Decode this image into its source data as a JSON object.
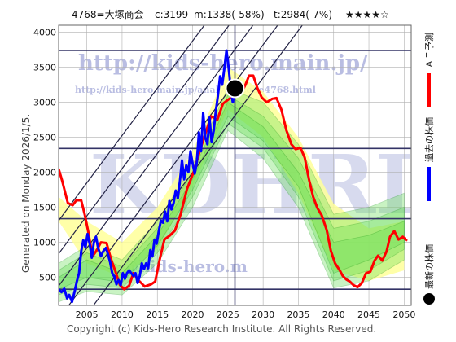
{
  "header": {
    "code_name": "4768=大塚商会",
    "current": "c:3199",
    "max": "m:1338(-58%)",
    "target": "t:2984(-7%)",
    "stars": "★★★★☆"
  },
  "side_label": "Generated on Monday 2026/1/5.",
  "footer": "Copyright (c) Kids-Hero Research Institute. All Rights Reserved.",
  "watermarks": {
    "url_main": "http://kids-hero.main.jp/",
    "url_sub": "http://kids-hero.main.jp/analysis/code4768.html",
    "logo": "KDHRI",
    "email": "@kids-hero.m"
  },
  "legend": [
    {
      "label": "ＡＩ予測",
      "color": "#ff0000",
      "kind": "line"
    },
    {
      "label": "過去の株価",
      "color": "#0000ff",
      "kind": "line"
    },
    {
      "label": "最新の株価",
      "color": "#000000",
      "kind": "dot"
    }
  ],
  "colors": {
    "band_fill": "#66dd55",
    "band_line": "#119911",
    "yellow_band": "#ffff99",
    "channel_line": "#222244",
    "hline": "#333366",
    "grid": "#b0b0b0",
    "plot_bg": "#ffffff"
  },
  "chart_data": {
    "type": "line",
    "x_ticks": [
      2005,
      2010,
      2015,
      2020,
      2025,
      2030,
      2035,
      2040,
      2045,
      2050
    ],
    "y_ticks": [
      500,
      1000,
      1500,
      2000,
      2500,
      3000,
      3500,
      4000
    ],
    "xlim": [
      2001,
      2051
    ],
    "ylim": [
      100,
      4100
    ],
    "grid": true,
    "current_point": {
      "x": 2026.0,
      "y": 3199
    },
    "current_vline_x": 2026.0,
    "horizontal_lines": [
      3740,
      2340,
      1338,
      330
    ],
    "channel_lines": [
      {
        "x1": 1998.2,
        "y1": 0,
        "x2": 2029.3,
        "y2": 4200
      },
      {
        "x1": 2001.7,
        "y1": 0,
        "x2": 2032.8,
        "y2": 4200
      },
      {
        "x1": 2005.2,
        "y1": 0,
        "x2": 2036.3,
        "y2": 4200
      },
      {
        "x1": 1994.8,
        "y1": 0,
        "x2": 2025.9,
        "y2": 4200
      },
      {
        "x1": 1991.3,
        "y1": 0,
        "x2": 2022.4,
        "y2": 4200
      }
    ],
    "series": [
      {
        "name": "ＡＩ予測",
        "color": "#ff0000",
        "points": [
          [
            2001,
            2050
          ],
          [
            2001.5,
            1880
          ],
          [
            2002.3,
            1560
          ],
          [
            2003,
            1530
          ],
          [
            2003.5,
            1600
          ],
          [
            2004.2,
            1600
          ],
          [
            2004.7,
            1400
          ],
          [
            2005.2,
            1150
          ],
          [
            2005.8,
            800
          ],
          [
            2006.3,
            870
          ],
          [
            2007,
            1000
          ],
          [
            2007.8,
            990
          ],
          [
            2008.4,
            770
          ],
          [
            2009,
            600
          ],
          [
            2009.7,
            390
          ],
          [
            2010.3,
            330
          ],
          [
            2011,
            380
          ],
          [
            2011.6,
            560
          ],
          [
            2012.3,
            460
          ],
          [
            2013.2,
            370
          ],
          [
            2014.1,
            400
          ],
          [
            2014.7,
            440
          ],
          [
            2015.3,
            740
          ],
          [
            2016,
            1040
          ],
          [
            2016.8,
            1100
          ],
          [
            2017.5,
            1170
          ],
          [
            2018.3,
            1400
          ],
          [
            2019.2,
            1760
          ],
          [
            2020.2,
            2020
          ],
          [
            2021,
            2300
          ],
          [
            2021.8,
            2550
          ],
          [
            2022.6,
            2800
          ],
          [
            2023.5,
            2750
          ],
          [
            2024.3,
            2980
          ],
          [
            2025.2,
            3050
          ],
          [
            2026,
            3090
          ],
          [
            2026.9,
            3130
          ],
          [
            2027.5,
            3250
          ],
          [
            2028,
            3380
          ],
          [
            2028.6,
            3380
          ],
          [
            2029.2,
            3200
          ],
          [
            2029.8,
            3070
          ],
          [
            2030.5,
            3000
          ],
          [
            2031.3,
            3050
          ],
          [
            2031.9,
            3060
          ],
          [
            2032.6,
            2890
          ],
          [
            2033.3,
            2600
          ],
          [
            2034,
            2400
          ],
          [
            2034.6,
            2330
          ],
          [
            2035.3,
            2350
          ],
          [
            2035.9,
            2210
          ],
          [
            2036.5,
            1900
          ],
          [
            2037.1,
            1650
          ],
          [
            2037.7,
            1490
          ],
          [
            2038.3,
            1390
          ],
          [
            2039,
            1180
          ],
          [
            2039.6,
            880
          ],
          [
            2040.2,
            700
          ],
          [
            2040.8,
            610
          ],
          [
            2041.3,
            520
          ],
          [
            2041.8,
            470
          ],
          [
            2042.3,
            440
          ],
          [
            2042.8,
            390
          ],
          [
            2043.4,
            360
          ],
          [
            2044,
            420
          ],
          [
            2044.6,
            560
          ],
          [
            2045.2,
            580
          ],
          [
            2045.8,
            740
          ],
          [
            2046.3,
            810
          ],
          [
            2046.9,
            740
          ],
          [
            2047.5,
            870
          ],
          [
            2048,
            1080
          ],
          [
            2048.6,
            1160
          ],
          [
            2049.2,
            1040
          ],
          [
            2049.8,
            1080
          ],
          [
            2050.4,
            1020
          ]
        ]
      },
      {
        "name": "過去の株価",
        "color": "#0000ff",
        "points": [
          [
            2001,
            330
          ],
          [
            2001.4,
            290
          ],
          [
            2001.8,
            340
          ],
          [
            2002.2,
            200
          ],
          [
            2002.5,
            250
          ],
          [
            2002.9,
            150
          ],
          [
            2003.3,
            310
          ],
          [
            2003.6,
            450
          ],
          [
            2003.9,
            560
          ],
          [
            2004.2,
            870
          ],
          [
            2004.5,
            1030
          ],
          [
            2004.8,
            930
          ],
          [
            2005.1,
            1120
          ],
          [
            2005.4,
            980
          ],
          [
            2005.7,
            780
          ],
          [
            2006,
            1000
          ],
          [
            2006.3,
            1080
          ],
          [
            2006.6,
            920
          ],
          [
            2007,
            800
          ],
          [
            2007.3,
            870
          ],
          [
            2007.7,
            920
          ],
          [
            2008,
            830
          ],
          [
            2008.3,
            720
          ],
          [
            2008.6,
            560
          ],
          [
            2008.9,
            510
          ],
          [
            2009.2,
            400
          ],
          [
            2009.5,
            460
          ],
          [
            2009.8,
            390
          ],
          [
            2010.1,
            560
          ],
          [
            2010.4,
            480
          ],
          [
            2010.7,
            560
          ],
          [
            2011,
            600
          ],
          [
            2011.3,
            560
          ],
          [
            2011.6,
            520
          ],
          [
            2011.9,
            560
          ],
          [
            2012.2,
            420
          ],
          [
            2012.5,
            520
          ],
          [
            2012.8,
            700
          ],
          [
            2013.1,
            620
          ],
          [
            2013.4,
            700
          ],
          [
            2013.7,
            630
          ],
          [
            2014,
            890
          ],
          [
            2014.3,
            800
          ],
          [
            2014.6,
            1040
          ],
          [
            2014.9,
            980
          ],
          [
            2015.2,
            1160
          ],
          [
            2015.5,
            1310
          ],
          [
            2015.8,
            1280
          ],
          [
            2016.1,
            1440
          ],
          [
            2016.4,
            1300
          ],
          [
            2016.7,
            1590
          ],
          [
            2017,
            1470
          ],
          [
            2017.3,
            1560
          ],
          [
            2017.6,
            1740
          ],
          [
            2017.9,
            1630
          ],
          [
            2018.2,
            1880
          ],
          [
            2018.5,
            2170
          ],
          [
            2018.8,
            1900
          ],
          [
            2019.1,
            2100
          ],
          [
            2019.4,
            2000
          ],
          [
            2019.7,
            2300
          ],
          [
            2020,
            2130
          ],
          [
            2020.3,
            1980
          ],
          [
            2020.6,
            2140
          ],
          [
            2020.9,
            2570
          ],
          [
            2021.2,
            2300
          ],
          [
            2021.5,
            2850
          ],
          [
            2021.8,
            2500
          ],
          [
            2022.1,
            2400
          ],
          [
            2022.4,
            2780
          ],
          [
            2022.7,
            2430
          ],
          [
            2023,
            2600
          ],
          [
            2023.3,
            2880
          ],
          [
            2023.6,
            3100
          ],
          [
            2023.9,
            3370
          ],
          [
            2024.2,
            3250
          ],
          [
            2024.5,
            3480
          ],
          [
            2024.8,
            3740
          ],
          [
            2025.1,
            3500
          ],
          [
            2025.4,
            3200
          ],
          [
            2025.7,
            3000
          ],
          [
            2026,
            3199
          ]
        ]
      }
    ],
    "bands": [
      {
        "x": [
          2001,
          2005,
          2010,
          2015,
          2020,
          2025,
          2030,
          2035,
          2040,
          2045,
          2050
        ],
        "upper": [
          700,
          950,
          750,
          1300,
          2100,
          3200,
          3000,
          2400,
          1400,
          1500,
          1700
        ],
        "lower": [
          150,
          300,
          250,
          700,
          1500,
          2600,
          2200,
          1500,
          350,
          450,
          750
        ]
      },
      {
        "x": [
          2001,
          2005,
          2010,
          2015,
          2020,
          2025,
          2030,
          2035,
          2040,
          2045,
          2050
        ],
        "upper": [
          600,
          850,
          650,
          1200,
          2000,
          3100,
          2800,
          2200,
          1200,
          1300,
          1500
        ],
        "lower": [
          250,
          400,
          350,
          850,
          1650,
          2700,
          2350,
          1650,
          450,
          600,
          900
        ]
      },
      {
        "x": [
          2001,
          2005,
          2010,
          2015,
          2020,
          2025,
          2030,
          2035,
          2040,
          2045,
          2050
        ],
        "upper": [
          500,
          750,
          560,
          1100,
          1900,
          3000,
          2650,
          2000,
          1000,
          1100,
          1300
        ],
        "lower": [
          330,
          500,
          430,
          950,
          1750,
          2800,
          2450,
          1800,
          560,
          750,
          1000
        ]
      }
    ],
    "yellow_band": {
      "x": [
        2001,
        2005,
        2010,
        2015,
        2020,
        2025,
        2030,
        2035,
        2040,
        2045,
        2050
      ],
      "upper": [
        1650,
        1300,
        1000,
        1500,
        2300,
        3500,
        3150,
        2500,
        1550,
        1200,
        1300
      ],
      "lower": [
        1300,
        700,
        500,
        900,
        1800,
        2900,
        2500,
        1700,
        600,
        450,
        600
      ]
    }
  }
}
